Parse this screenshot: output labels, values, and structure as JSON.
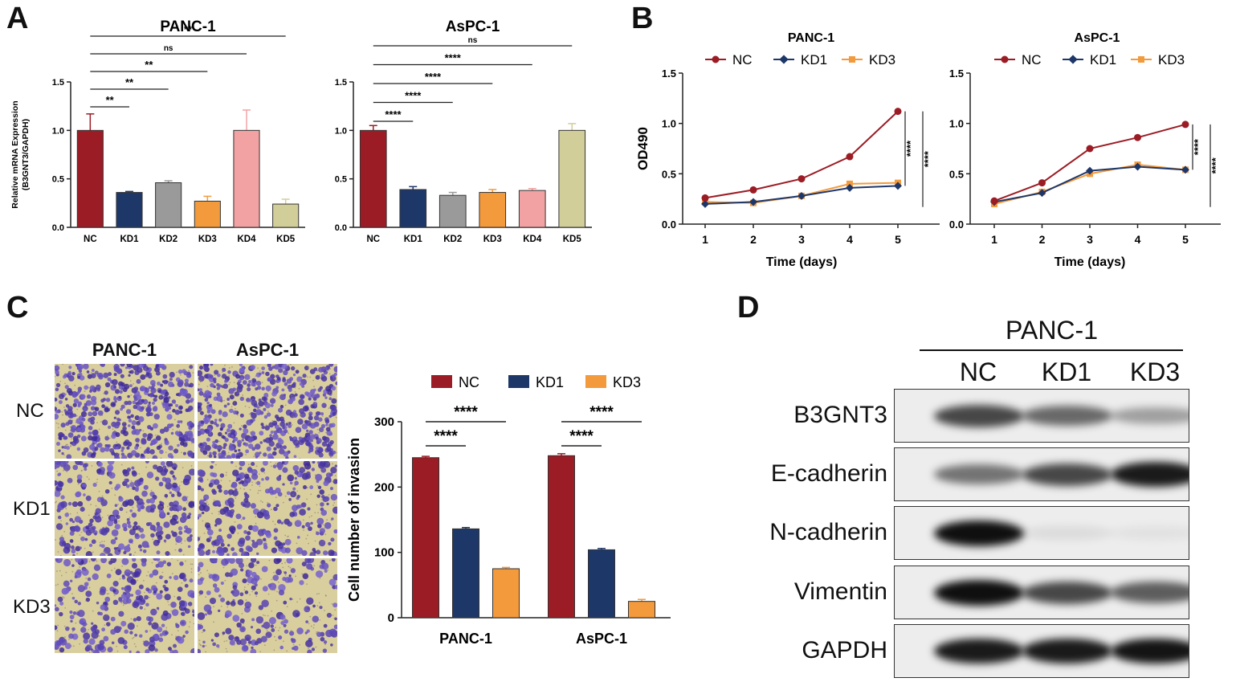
{
  "panels": {
    "a": "A",
    "b": "B",
    "c": "C",
    "d": "D"
  },
  "colors": {
    "nc": "#9b1c24",
    "kd1": "#1e3769",
    "kd2": "#9a9a9a",
    "kd3": "#f39a3c",
    "kd4": "#f2a2a2",
    "kd5": "#d2ce9a",
    "micro_bg": "#d9cf9e",
    "cell": "#4a3f9c"
  },
  "chart_data": [
    {
      "id": "A-PANC-1",
      "type": "bar",
      "title": "PANC-1",
      "ylabel_lines": [
        "Relative mRNA Expression",
        "(B3GNT3/GAPDH)"
      ],
      "categories": [
        "NC",
        "KD1",
        "KD2",
        "KD3",
        "KD4",
        "KD5"
      ],
      "values": [
        1.0,
        0.36,
        0.46,
        0.27,
        1.0,
        0.24
      ],
      "errors": [
        0.17,
        0.01,
        0.02,
        0.05,
        0.21,
        0.05
      ],
      "ylim": [
        0,
        1.5
      ],
      "yticks": [
        "0.0",
        "0.5",
        "1.0",
        "1.5"
      ],
      "brackets": [
        {
          "from": 0,
          "to": 1,
          "label": "**"
        },
        {
          "from": 0,
          "to": 2,
          "label": "**"
        },
        {
          "from": 0,
          "to": 3,
          "label": "**"
        },
        {
          "from": 0,
          "to": 4,
          "label": "ns"
        },
        {
          "from": 0,
          "to": 5,
          "label": "**"
        }
      ]
    },
    {
      "id": "A-AsPC-1",
      "type": "bar",
      "title": "AsPC-1",
      "categories": [
        "NC",
        "KD1",
        "KD2",
        "KD3",
        "KD4",
        "KD5"
      ],
      "values": [
        1.0,
        0.39,
        0.33,
        0.36,
        0.38,
        1.0
      ],
      "errors": [
        0.05,
        0.03,
        0.03,
        0.03,
        0.02,
        0.07
      ],
      "ylim": [
        0,
        1.5
      ],
      "yticks": [
        "0.0",
        "0.5",
        "1.0",
        "1.5"
      ],
      "brackets": [
        {
          "from": 0,
          "to": 1,
          "label": "****"
        },
        {
          "from": 0,
          "to": 2,
          "label": "****"
        },
        {
          "from": 0,
          "to": 3,
          "label": "****"
        },
        {
          "from": 0,
          "to": 4,
          "label": "****"
        },
        {
          "from": 0,
          "to": 5,
          "label": "ns"
        }
      ]
    },
    {
      "id": "B-PANC-1",
      "type": "line",
      "title": "PANC-1",
      "xlabel": "Time (days)",
      "ylabel": "OD490",
      "x": [
        1,
        2,
        3,
        4,
        5
      ],
      "xticks": [
        "1",
        "2",
        "3",
        "4",
        "5"
      ],
      "ylim": [
        0,
        1.5
      ],
      "yticks": [
        "0.0",
        "0.5",
        "1.0",
        "1.5"
      ],
      "series": [
        {
          "name": "NC",
          "values": [
            0.26,
            0.34,
            0.45,
            0.67,
            1.12
          ]
        },
        {
          "name": "KD1",
          "values": [
            0.2,
            0.22,
            0.28,
            0.36,
            0.38
          ]
        },
        {
          "name": "KD3",
          "values": [
            0.22,
            0.21,
            0.28,
            0.4,
            0.41
          ]
        }
      ],
      "sig": [
        "****",
        "****"
      ]
    },
    {
      "id": "B-AsPC-1",
      "type": "line",
      "title": "AsPC-1",
      "xlabel": "Time (days)",
      "x": [
        1,
        2,
        3,
        4,
        5
      ],
      "xticks": [
        "1",
        "2",
        "3",
        "4",
        "5"
      ],
      "ylim": [
        0,
        1.5
      ],
      "yticks": [
        "0.0",
        "0.5",
        "1.0",
        "1.5"
      ],
      "series": [
        {
          "name": "NC",
          "values": [
            0.23,
            0.41,
            0.75,
            0.86,
            0.99
          ]
        },
        {
          "name": "KD1",
          "values": [
            0.22,
            0.31,
            0.53,
            0.57,
            0.54
          ]
        },
        {
          "name": "KD3",
          "values": [
            0.2,
            0.32,
            0.5,
            0.59,
            0.54
          ]
        }
      ],
      "sig": [
        "****",
        "****"
      ]
    },
    {
      "id": "C-invasion",
      "type": "bar",
      "ylabel": "Cell number of invasion",
      "categories": [
        "PANC-1",
        "AsPC-1"
      ],
      "ylim": [
        0,
        300
      ],
      "yticks": [
        "0",
        "100",
        "200",
        "300"
      ],
      "series": [
        {
          "name": "NC",
          "values": [
            245,
            248
          ],
          "errors": [
            2,
            3
          ]
        },
        {
          "name": "KD1",
          "values": [
            136,
            104
          ],
          "errors": [
            2,
            2
          ]
        },
        {
          "name": "KD3",
          "values": [
            75,
            25
          ],
          "errors": [
            2,
            3
          ]
        }
      ],
      "brackets": [
        {
          "group": 0,
          "from": 0,
          "to": 1,
          "label": "****"
        },
        {
          "group": 0,
          "from": 0,
          "to": 2,
          "label": "****"
        },
        {
          "group": 1,
          "from": 0,
          "to": 1,
          "label": "****"
        },
        {
          "group": 1,
          "from": 0,
          "to": 2,
          "label": "****"
        }
      ]
    }
  ],
  "micrographs": {
    "columns": [
      "PANC-1",
      "AsPC-1"
    ],
    "rows": [
      "NC",
      "KD1",
      "KD3"
    ],
    "density": [
      [
        1.0,
        0.95
      ],
      [
        0.55,
        0.5
      ],
      [
        0.45,
        0.3
      ]
    ]
  },
  "western": {
    "title": "PANC-1",
    "lanes": [
      "NC",
      "KD1",
      "KD3"
    ],
    "proteins": [
      {
        "name": "B3GNT3",
        "intensity": [
          0.75,
          0.6,
          0.35
        ]
      },
      {
        "name": "E-cadherin",
        "intensity": [
          0.55,
          0.75,
          0.95
        ]
      },
      {
        "name": "N-cadherin",
        "intensity": [
          1.0,
          0.08,
          0.05
        ]
      },
      {
        "name": "Vimentin",
        "intensity": [
          1.0,
          0.75,
          0.65
        ]
      },
      {
        "name": "GAPDH",
        "intensity": [
          0.95,
          0.95,
          0.98
        ]
      }
    ]
  }
}
